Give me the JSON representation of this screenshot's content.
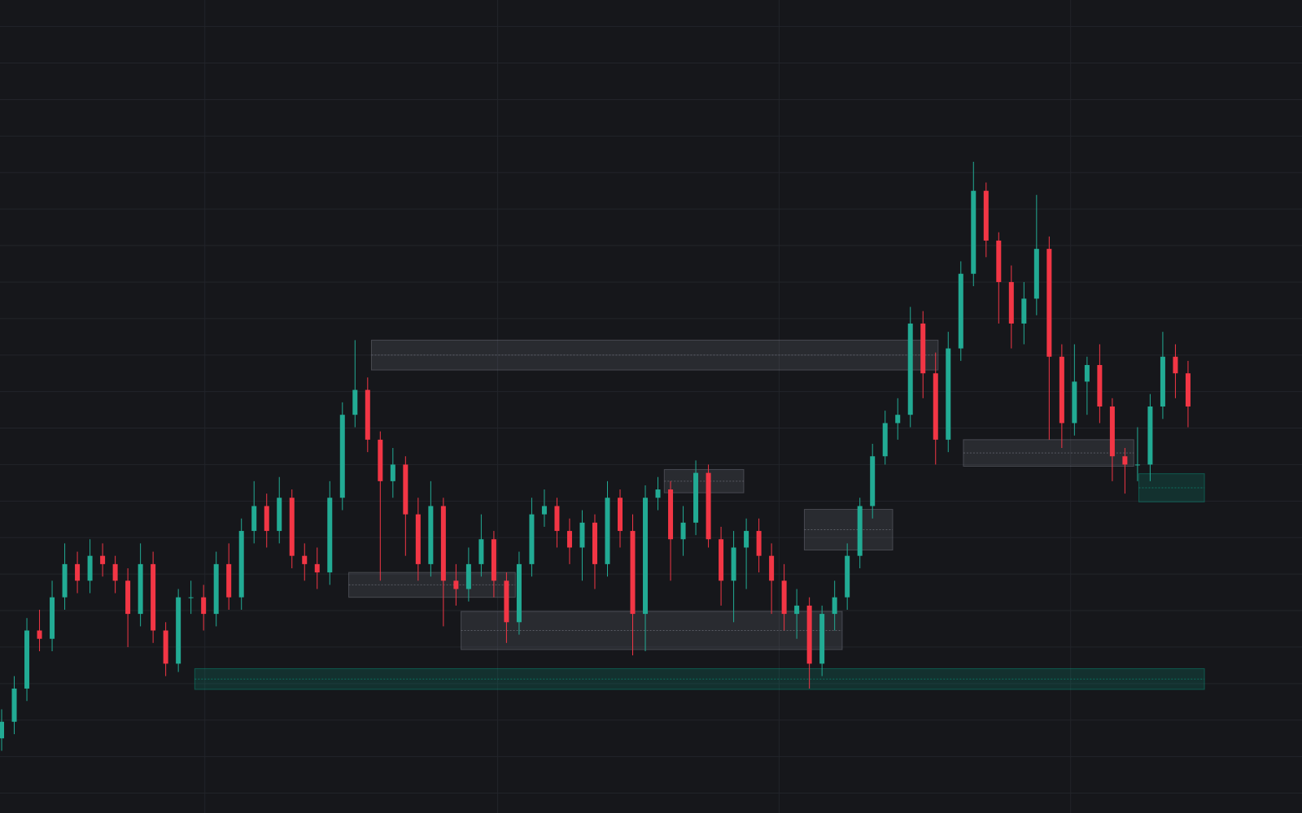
{
  "chart_data": {
    "type": "candlestick",
    "background": "#16171b",
    "grid": true,
    "grid_color": "#22242a",
    "up_color": "#22ab94",
    "down_color": "#f23645",
    "ylim": [
      20,
      1000
    ],
    "yticks": [
      44,
      88,
      132,
      176,
      220,
      264,
      308,
      352,
      396,
      440,
      484,
      528,
      572,
      616,
      660,
      704,
      748,
      792,
      836,
      880,
      924,
      968
    ],
    "xlim": [
      -0.13,
      103.03
    ],
    "xticks": [
      16.1,
      39.3,
      61.6,
      84.7
    ],
    "candles": {
      "open": [
        110,
        130,
        170,
        240,
        230,
        280,
        320,
        300,
        330,
        320,
        300,
        260,
        320,
        240,
        200,
        280,
        280,
        260,
        320,
        280,
        360,
        390,
        360,
        400,
        330,
        320,
        310,
        400,
        500,
        530,
        470,
        420,
        440,
        380,
        320,
        390,
        300,
        290,
        320,
        350,
        300,
        250,
        320,
        380,
        390,
        360,
        340,
        370,
        320,
        400,
        360,
        260,
        400,
        410,
        350,
        370,
        430,
        350,
        300,
        340,
        360,
        330,
        300,
        260,
        270,
        200,
        260,
        280,
        330,
        390,
        450,
        490,
        500,
        610,
        550,
        470,
        580,
        670,
        770,
        710,
        660,
        610,
        640,
        700,
        570,
        490,
        540,
        560,
        510,
        450,
        440,
        440,
        510,
        570,
        550
      ],
      "high": [
        145,
        185,
        255,
        265,
        300,
        345,
        335,
        350,
        345,
        330,
        315,
        345,
        335,
        250,
        290,
        300,
        295,
        335,
        345,
        375,
        420,
        405,
        425,
        410,
        345,
        340,
        420,
        515,
        590,
        545,
        480,
        460,
        450,
        400,
        420,
        400,
        320,
        340,
        380,
        360,
        310,
        335,
        400,
        410,
        400,
        375,
        385,
        380,
        420,
        410,
        380,
        415,
        425,
        420,
        390,
        445,
        440,
        365,
        360,
        375,
        375,
        345,
        320,
        290,
        280,
        270,
        300,
        345,
        400,
        465,
        505,
        520,
        630,
        625,
        575,
        600,
        685,
        805,
        780,
        720,
        680,
        660,
        765,
        715,
        585,
        585,
        570,
        585,
        520,
        460,
        485,
        525,
        600,
        585,
        565
      ],
      "low": [
        95,
        115,
        155,
        215,
        215,
        265,
        285,
        285,
        305,
        285,
        220,
        245,
        225,
        185,
        190,
        260,
        240,
        245,
        265,
        265,
        345,
        340,
        345,
        315,
        300,
        290,
        295,
        385,
        485,
        455,
        300,
        400,
        330,
        300,
        305,
        245,
        270,
        275,
        305,
        280,
        225,
        235,
        305,
        365,
        340,
        320,
        300,
        290,
        305,
        340,
        210,
        215,
        385,
        300,
        330,
        355,
        340,
        270,
        250,
        290,
        310,
        260,
        240,
        230,
        170,
        185,
        240,
        265,
        315,
        375,
        440,
        470,
        485,
        520,
        440,
        455,
        565,
        655,
        690,
        610,
        580,
        585,
        620,
        470,
        460,
        475,
        500,
        490,
        420,
        405,
        420,
        420,
        495,
        520,
        485
      ],
      "close": [
        130,
        170,
        240,
        230,
        280,
        320,
        300,
        330,
        320,
        300,
        260,
        320,
        240,
        200,
        280,
        280,
        260,
        320,
        280,
        360,
        390,
        360,
        400,
        330,
        320,
        310,
        400,
        500,
        530,
        470,
        420,
        440,
        380,
        320,
        390,
        300,
        290,
        320,
        350,
        300,
        250,
        320,
        380,
        390,
        360,
        340,
        370,
        320,
        400,
        360,
        260,
        400,
        410,
        350,
        370,
        430,
        350,
        300,
        340,
        360,
        330,
        300,
        260,
        270,
        200,
        260,
        280,
        330,
        390,
        450,
        490,
        500,
        610,
        550,
        470,
        580,
        670,
        770,
        710,
        660,
        610,
        640,
        700,
        570,
        490,
        540,
        560,
        510,
        450,
        440,
        440,
        510,
        570,
        550,
        510
      ]
    },
    "zones": [
      {
        "x": [
          29.3,
          74.2
        ],
        "y": [
          554,
          590
        ],
        "color": "#787b86"
      },
      {
        "x": [
          27.5,
          40.7
        ],
        "y": [
          280,
          310
        ],
        "color": "#787b86"
      },
      {
        "x": [
          36.4,
          66.6
        ],
        "y": [
          217,
          263
        ],
        "color": "#787b86"
      },
      {
        "x": [
          52.5,
          58.8
        ],
        "y": [
          406,
          434
        ],
        "color": "#787b86"
      },
      {
        "x": [
          63.6,
          70.6
        ],
        "y": [
          337,
          386
        ],
        "color": "#787b86"
      },
      {
        "x": [
          76.2,
          89.7
        ],
        "y": [
          438,
          470
        ],
        "color": "#787b86"
      },
      {
        "x": [
          90.1,
          95.3
        ],
        "y": [
          395,
          429
        ],
        "color": "#089981"
      },
      {
        "x": [
          15.3,
          95.3
        ],
        "y": [
          169,
          194
        ],
        "color": "#089981"
      }
    ]
  }
}
